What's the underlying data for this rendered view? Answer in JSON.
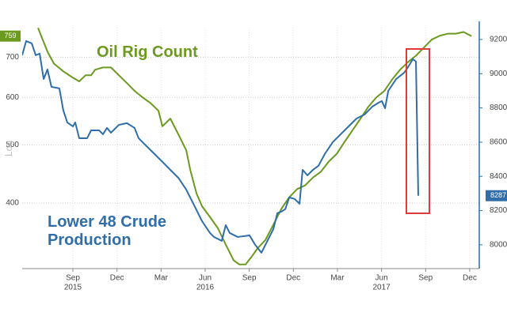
{
  "chart_data": {
    "type": "line",
    "xlim": [
      -3.45,
      27.65
    ],
    "xticks": [
      {
        "value": 0,
        "label": "Sep"
      },
      {
        "value": 3,
        "label": "Dec"
      },
      {
        "value": 6,
        "label": "Mar"
      },
      {
        "value": 9,
        "label": "Jun"
      },
      {
        "value": 12,
        "label": "Sep"
      },
      {
        "value": 15,
        "label": "Dec"
      },
      {
        "value": 18,
        "label": "Mar"
      },
      {
        "value": 21,
        "label": "Jun"
      },
      {
        "value": 24,
        "label": "Sep"
      },
      {
        "value": 27,
        "label": "Dec"
      }
    ],
    "x_year_ticks": [
      {
        "value": 0,
        "label": "2015"
      },
      {
        "value": 9,
        "label": "2016"
      },
      {
        "value": 21,
        "label": "2017"
      }
    ],
    "ylabel": "Log",
    "ylog": true,
    "ylim": [
      311,
      784
    ],
    "yticks": [
      400,
      500,
      600,
      700
    ],
    "y2lim": [
      7861,
      9269
    ],
    "y2ticks": [
      8000,
      8200,
      8400,
      8600,
      8800,
      9000,
      9200
    ],
    "grid": true,
    "last_value_tags": true,
    "series": [
      {
        "name": "Oil Rig Count",
        "color": "#6b9a1e",
        "axis": "y",
        "x": [
          -2.37,
          -1.73,
          -1.29,
          -0.65,
          0,
          0.43,
          0.86,
          1.24,
          1.51,
          2.05,
          2.59,
          3.13,
          3.67,
          4.2,
          4.74,
          5.28,
          5.82,
          6.09,
          6.63,
          7.17,
          7.71,
          7.98,
          8.41,
          8.79,
          9.33,
          9.87,
          10.4,
          10.94,
          11.32,
          11.75,
          12.18,
          12.56,
          13.1,
          13.64,
          14.18,
          14.72,
          15.26,
          15.8,
          16.33,
          16.87,
          17.41,
          17.95,
          18.49,
          19.03,
          19.57,
          20.11,
          20.65,
          21.19,
          21.73,
          22.26,
          22.8,
          23.34,
          23.88,
          24.42,
          24.96,
          25.5,
          26.04,
          26.58,
          27.12
        ],
        "values": [
          783,
          715,
          683,
          663,
          647,
          638,
          653,
          653,
          667,
          673,
          673,
          653,
          634,
          615,
          600,
          587,
          570,
          537,
          553,
          521,
          490,
          455,
          415,
          395,
          379,
          363,
          341,
          321,
          316,
          316,
          326,
          336,
          347,
          368,
          391,
          409,
          422,
          428,
          441,
          451,
          469,
          483,
          506,
          529,
          553,
          579,
          600,
          615,
          643,
          667,
          687,
          704,
          726,
          749,
          760,
          766,
          766,
          771,
          759
        ]
      },
      {
        "name": "Lower 48 Crude Production",
        "color": "#2f6ea8",
        "axis": "y2",
        "x": [
          -3.45,
          -3.18,
          -2.8,
          -2.53,
          -2.26,
          -1.99,
          -1.73,
          -1.46,
          -0.92,
          -0.65,
          -0.38,
          0,
          0.16,
          0.43,
          0.97,
          1.24,
          1.78,
          2.05,
          2.32,
          2.59,
          3.13,
          3.67,
          4.2,
          4.47,
          5.01,
          5.55,
          6.09,
          6.63,
          7.17,
          7.71,
          8.25,
          8.79,
          9.33,
          9.6,
          10.13,
          10.4,
          10.67,
          11.21,
          12.02,
          12.4,
          12.83,
          13.37,
          13.64,
          13.91,
          14.18,
          14.45,
          14.72,
          15.09,
          15.42,
          15.63,
          15.96,
          16.33,
          16.71,
          17.14,
          17.68,
          18.22,
          18.76,
          19.3,
          19.84,
          20.38,
          20.81,
          21.02,
          21.24,
          21.46,
          22,
          22.54,
          22.8,
          23.13,
          23.34,
          23.5
        ],
        "values": [
          9108,
          9191,
          9177,
          9108,
          9117,
          8969,
          9025,
          8923,
          8914,
          8785,
          8715,
          8692,
          8715,
          8623,
          8623,
          8669,
          8669,
          8646,
          8683,
          8655,
          8701,
          8711,
          8683,
          8623,
          8577,
          8531,
          8485,
          8438,
          8392,
          8323,
          8231,
          8138,
          8069,
          8046,
          8023,
          8115,
          8069,
          8046,
          8055,
          8000,
          7954,
          8046,
          8092,
          8185,
          8194,
          8208,
          8277,
          8268,
          8240,
          8438,
          8406,
          8438,
          8462,
          8531,
          8600,
          8646,
          8692,
          8738,
          8761,
          8808,
          8831,
          8840,
          8798,
          8900,
          8969,
          9006,
          9038,
          9085,
          9071,
          8287
        ]
      }
    ]
  }
}
